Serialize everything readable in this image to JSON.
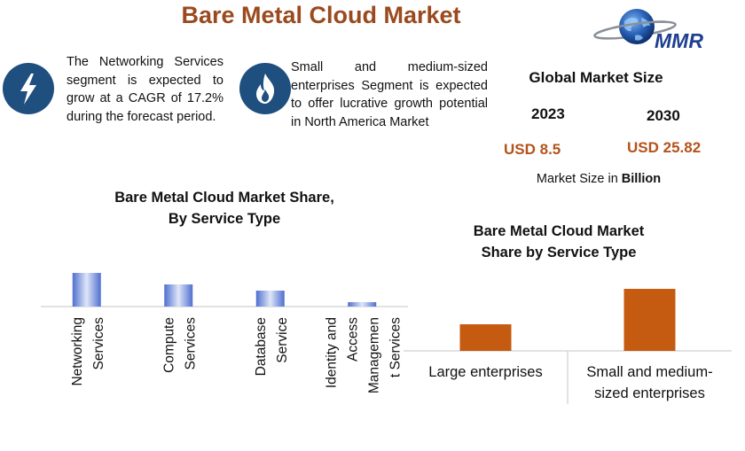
{
  "page": {
    "title": "Bare Metal Cloud Market",
    "logo_text": "MMR"
  },
  "callouts": [
    {
      "icon": "lightning-bolt-icon",
      "text": "The Networking Services segment is expected to grow at a CAGR of 17.2% during the forecast period."
    },
    {
      "icon": "flame-icon",
      "text": "Small and medium-sized enterprises Segment is expected to offer lucrative growth potential in North America Market"
    }
  ],
  "global_market": {
    "title": "Global Market Size",
    "year_start": "2023",
    "year_end": "2030",
    "value_start": "USD 8.5",
    "value_end": "USD 25.82",
    "unit_prefix": "Market Size in",
    "unit_bold": "Billion"
  },
  "colors": {
    "title": "#9a4a1e",
    "icon_bg": "#1f4f7f",
    "value_text": "#b5521a",
    "bar_left_edge": "#4f6fcf",
    "bar_left_mid": "#dfe6f8",
    "bar_right": "#c55a11"
  },
  "chart_data": [
    {
      "type": "bar",
      "title_lines": [
        "Bare Metal Cloud Market Share,",
        "By Service Type"
      ],
      "categories": [
        [
          "Networking",
          "Services"
        ],
        [
          "Compute",
          "Services"
        ],
        [
          "Database",
          "Service"
        ],
        [
          "Identity and",
          "Access",
          "Managemen",
          "t Services"
        ]
      ],
      "values": [
        38,
        25,
        18,
        5
      ],
      "ylim": [
        0,
        40
      ],
      "grid": false,
      "legend": "none"
    },
    {
      "type": "bar",
      "title_lines": [
        "Bare Metal Cloud Market",
        "Share by Service Type"
      ],
      "categories": [
        [
          "Large enterprises"
        ],
        [
          "Small and medium-",
          "sized enterprises"
        ]
      ],
      "values": [
        30,
        70
      ],
      "ylim": [
        0,
        75
      ],
      "grid": false,
      "legend": "none"
    }
  ]
}
